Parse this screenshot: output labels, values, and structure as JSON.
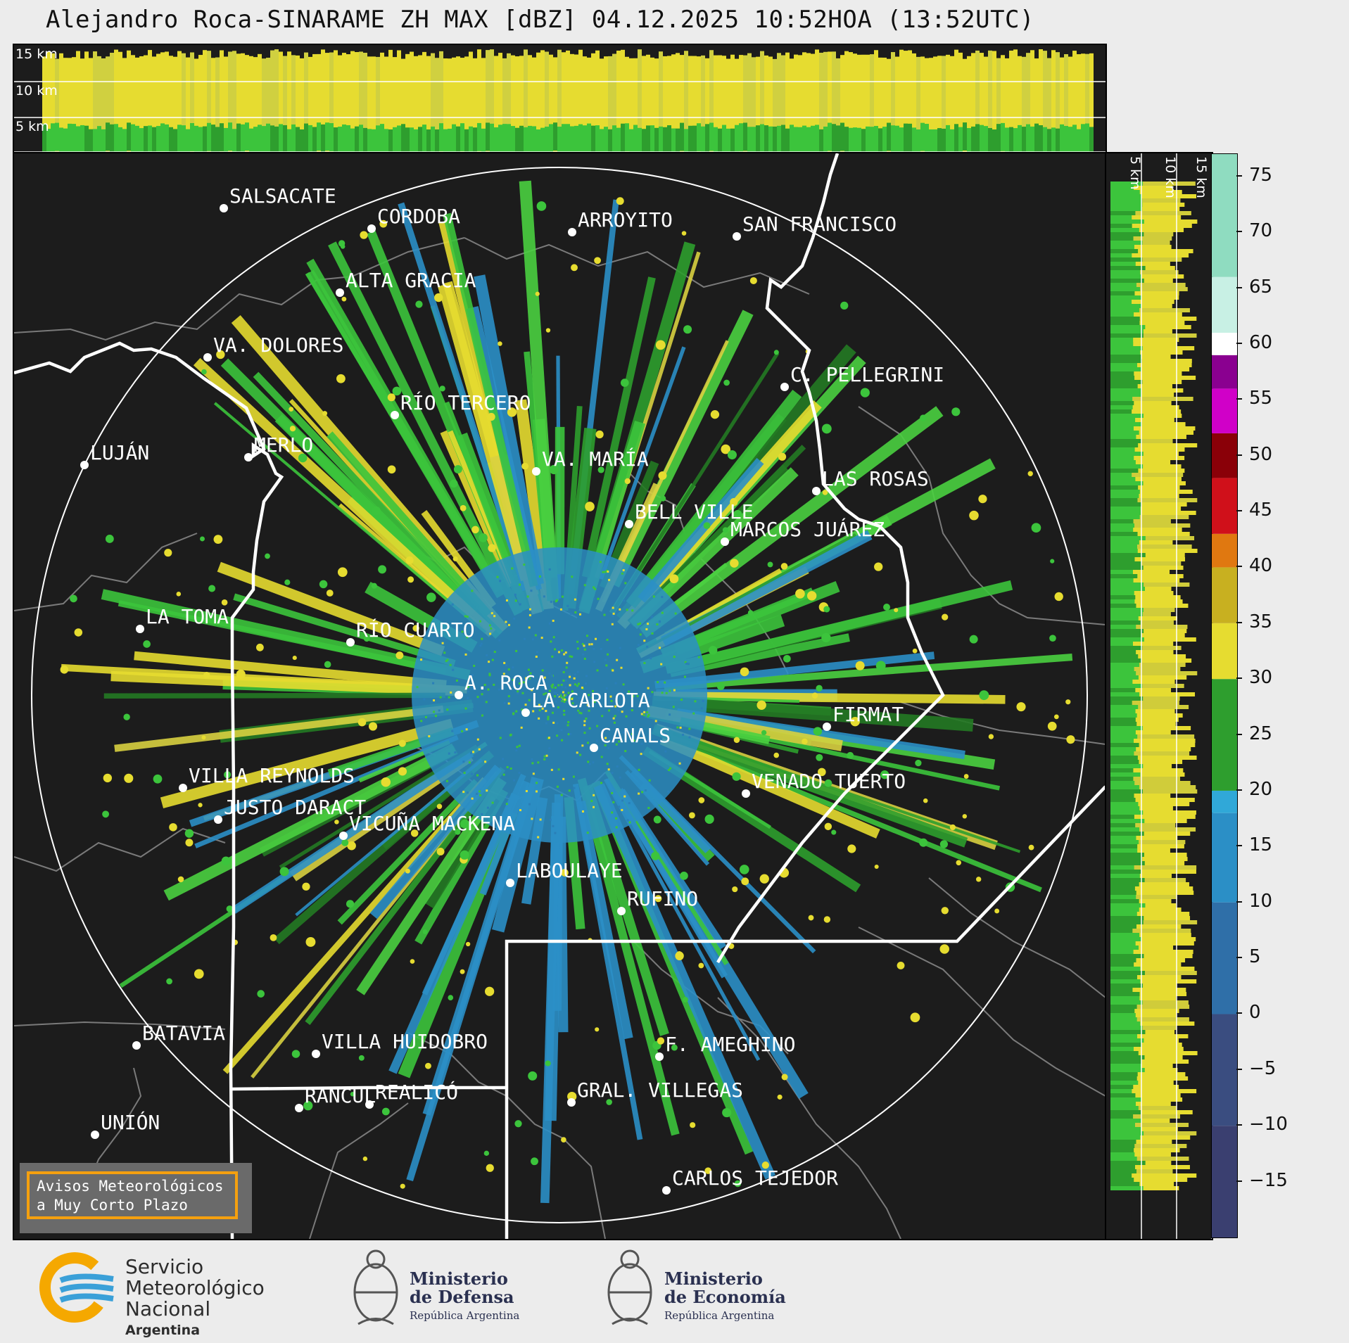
{
  "title": "Alejandro Roca-SINARAME ZH MAX [dBZ] 04.12.2025 10:52HOA (13:52UTC)",
  "top_panel": {
    "height_labels": [
      "15 km",
      "10 km",
      "5 km"
    ]
  },
  "side_panel": {
    "height_labels": [
      "5 km",
      "10 km",
      "15 km"
    ]
  },
  "colorbar": {
    "unit": "dBZ",
    "ticks": [
      "75",
      "70",
      "65",
      "60",
      "55",
      "50",
      "45",
      "40",
      "35",
      "30",
      "25",
      "20",
      "15",
      "10",
      "5",
      "0",
      "−5",
      "−10",
      "−15"
    ],
    "range": [
      -20,
      77
    ],
    "colors": {
      "below_0": "#3a4a7a",
      "0_to_18": "#2b8fc6",
      "18_to_30": "#2e9e2e",
      "30_to_40": "#e6dc30",
      "40_to_45": "#e07810",
      "45_to_52": "#c00010",
      "52_to_59": "#d000c8",
      "59_to_62": "#ffffff",
      "above_62": "#8fdcc0"
    }
  },
  "map": {
    "radar_site": "A. ROCA",
    "cities": [
      {
        "name": "SALSACATE"
      },
      {
        "name": "CORDOBA"
      },
      {
        "name": "ARROYITO"
      },
      {
        "name": "SAN FRANCISCO"
      },
      {
        "name": "ALTA GRACIA"
      },
      {
        "name": "VA. DOLORES"
      },
      {
        "name": "C. PELLEGRINI"
      },
      {
        "name": "RÍO TERCERO"
      },
      {
        "name": "LUJÁN"
      },
      {
        "name": "MERLO"
      },
      {
        "name": "VA. MARÍA"
      },
      {
        "name": "LAS ROSAS"
      },
      {
        "name": "BELL VILLE"
      },
      {
        "name": "MARCOS JUÁREZ"
      },
      {
        "name": "LA TOMA"
      },
      {
        "name": "RÍO CUARTO"
      },
      {
        "name": "A. ROCA"
      },
      {
        "name": "LA CARLOTA"
      },
      {
        "name": "FIRMAT"
      },
      {
        "name": "CANALS"
      },
      {
        "name": "VILLA REYNOLDS"
      },
      {
        "name": "VENADO TUERTO"
      },
      {
        "name": "JUSTO DARACT"
      },
      {
        "name": "VICUÑA MACKENA"
      },
      {
        "name": "LABOULAYE"
      },
      {
        "name": "RUFINO"
      },
      {
        "name": "BATAVIA"
      },
      {
        "name": "VILLA HUIDOBRO"
      },
      {
        "name": "F. AMEGHINO"
      },
      {
        "name": "RANCUL"
      },
      {
        "name": "REALICÓ"
      },
      {
        "name": "GRAL. VILLEGAS"
      },
      {
        "name": "UNIÓN"
      },
      {
        "name": "CARLOS TEJEDOR"
      }
    ]
  },
  "alert_box": {
    "line1": "Avisos Meteorológicos",
    "line2": "a Muy Corto Plazo"
  },
  "footer": {
    "smn_line1": "Servicio",
    "smn_line2": "Meteorológico",
    "smn_line3": "Nacional",
    "smn_line4": "Argentina",
    "defensa_line1": "Ministerio",
    "defensa_line2": "de Defensa",
    "defensa_sub": "República Argentina",
    "economia_line1": "Ministerio",
    "economia_line2": "de Economía",
    "economia_sub": "República Argentina"
  }
}
